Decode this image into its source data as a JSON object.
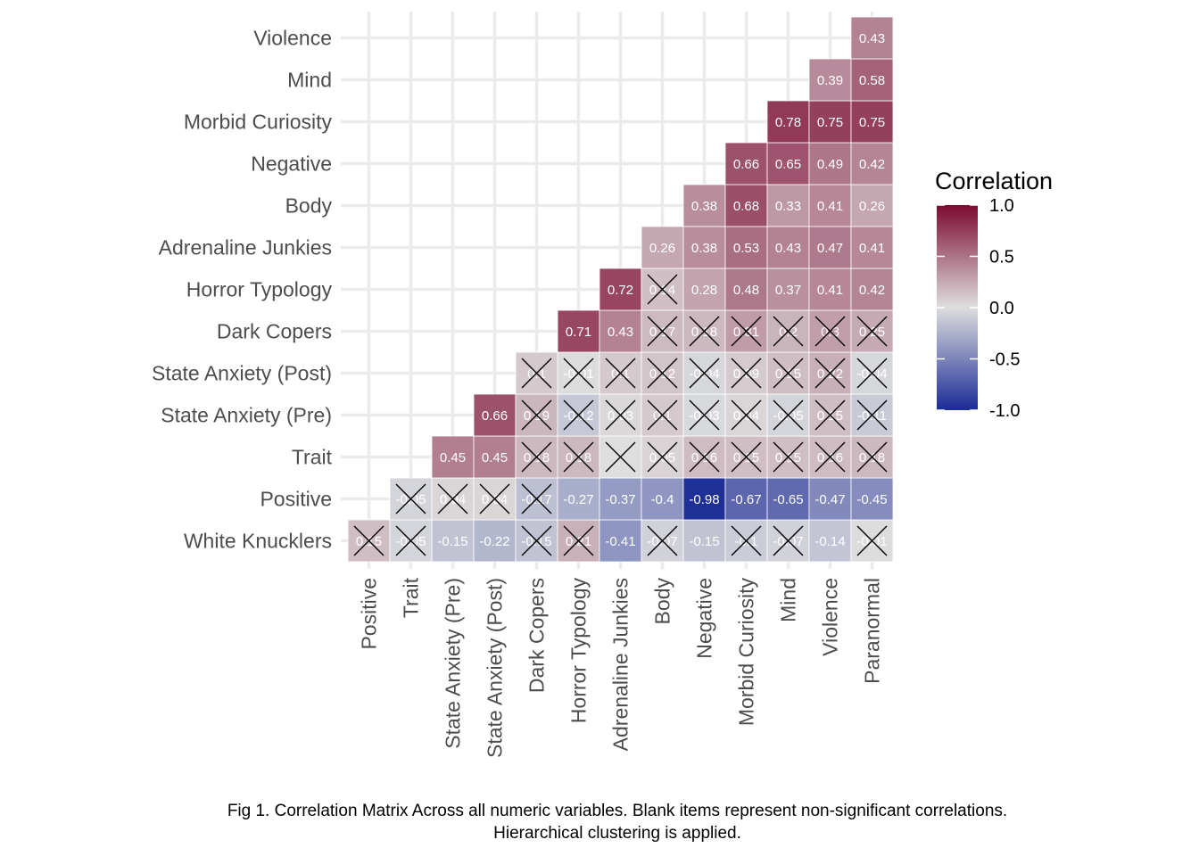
{
  "chart_data": {
    "type": "heatmap",
    "title": "",
    "caption_line1": "Fig 1. Correlation Matrix Across all numeric variables. Blank items represent non-significant correlations.",
    "caption_line2": "Hierarchical clustering is applied.",
    "x_categories": [
      "Positive",
      "Trait",
      "State Anxiety (Pre)",
      "State Anxiety (Post)",
      "Dark Copers",
      "Horror Typology",
      "Adrenaline Junkies",
      "Body",
      "Negative",
      "Morbid Curiosity",
      "Mind",
      "Violence",
      "Paranormal"
    ],
    "y_categories": [
      "White Knucklers",
      "Positive",
      "Trait",
      "State Anxiety (Pre)",
      "State Anxiety (Post)",
      "Dark Copers",
      "Horror Typology",
      "Adrenaline Junkies",
      "Body",
      "Negative",
      "Morbid Curiosity",
      "Mind",
      "Violence"
    ],
    "values": [
      [
        0.15,
        -0.05,
        -0.15,
        -0.22,
        -0.15,
        0.21,
        -0.41,
        -0.07,
        -0.15,
        -0.1,
        -0.07,
        -0.14,
        -0.01
      ],
      [
        null,
        -0.05,
        0.04,
        0.04,
        -0.17,
        -0.27,
        -0.37,
        -0.4,
        -0.98,
        -0.67,
        -0.65,
        -0.47,
        -0.45
      ],
      [
        null,
        null,
        0.45,
        0.45,
        0.18,
        0.18,
        0.0,
        0.05,
        0.16,
        0.15,
        0.15,
        0.16,
        0.18
      ],
      [
        null,
        null,
        null,
        0.66,
        0.19,
        -0.12,
        0.03,
        0.1,
        -0.03,
        0.04,
        -0.05,
        0.15,
        -0.11
      ],
      [
        null,
        null,
        null,
        null,
        0.1,
        -0.01,
        0.1,
        0.12,
        -0.04,
        0.09,
        0.15,
        0.22,
        -0.04
      ],
      [
        null,
        null,
        null,
        null,
        null,
        0.71,
        0.43,
        0.17,
        0.18,
        0.31,
        0.2,
        0.3,
        0.25
      ],
      [
        null,
        null,
        null,
        null,
        null,
        null,
        0.72,
        0.14,
        0.28,
        0.48,
        0.37,
        0.41,
        0.42
      ],
      [
        null,
        null,
        null,
        null,
        null,
        null,
        null,
        0.26,
        0.38,
        0.53,
        0.43,
        0.47,
        0.41
      ],
      [
        null,
        null,
        null,
        null,
        null,
        null,
        null,
        null,
        0.38,
        0.68,
        0.33,
        0.41,
        0.26
      ],
      [
        null,
        null,
        null,
        null,
        null,
        null,
        null,
        null,
        null,
        0.66,
        0.65,
        0.49,
        0.42
      ],
      [
        null,
        null,
        null,
        null,
        null,
        null,
        null,
        null,
        null,
        null,
        0.78,
        0.75,
        0.75
      ],
      [
        null,
        null,
        null,
        null,
        null,
        null,
        null,
        null,
        null,
        null,
        null,
        0.39,
        0.58
      ],
      [
        null,
        null,
        null,
        null,
        null,
        null,
        null,
        null,
        null,
        null,
        null,
        null,
        0.43
      ]
    ],
    "labels": [
      [
        "0.15",
        "-0.05",
        "-0.15",
        "-0.22",
        "-0.15",
        "0.21",
        "-0.41",
        "-0.07",
        "-0.15",
        "-0.1",
        "-0.07",
        "-0.14",
        "-0.01"
      ],
      [
        null,
        "-0.05",
        "0.04",
        "0.04",
        "-0.17",
        "-0.27",
        "-0.37",
        "-0.4",
        "-0.98",
        "-0.67",
        "-0.65",
        "-0.47",
        "-0.45"
      ],
      [
        null,
        null,
        "0.45",
        "0.45",
        "0.18",
        "0.18",
        "",
        "0.05",
        "0.16",
        "0.15",
        "0.15",
        "0.16",
        "0.18"
      ],
      [
        null,
        null,
        null,
        "0.66",
        "0.19",
        "-0.12",
        "0.03",
        "0.1",
        "-0.03",
        "0.04",
        "-0.05",
        "0.15",
        "-0.11"
      ],
      [
        null,
        null,
        null,
        null,
        "0.1",
        "-0.01",
        "0.1",
        "0.12",
        "-0.04",
        "0.09",
        "0.15",
        "0.22",
        "-0.04"
      ],
      [
        null,
        null,
        null,
        null,
        null,
        "0.71",
        "0.43",
        "0.17",
        "0.18",
        "0.31",
        "0.2",
        "0.3",
        "0.25"
      ],
      [
        null,
        null,
        null,
        null,
        null,
        null,
        "0.72",
        "0.14",
        "0.28",
        "0.48",
        "0.37",
        "0.41",
        "0.42"
      ],
      [
        null,
        null,
        null,
        null,
        null,
        null,
        null,
        "0.26",
        "0.38",
        "0.53",
        "0.43",
        "0.47",
        "0.41"
      ],
      [
        null,
        null,
        null,
        null,
        null,
        null,
        null,
        null,
        "0.38",
        "0.68",
        "0.33",
        "0.41",
        "0.26"
      ],
      [
        null,
        null,
        null,
        null,
        null,
        null,
        null,
        null,
        null,
        "0.66",
        "0.65",
        "0.49",
        "0.42"
      ],
      [
        null,
        null,
        null,
        null,
        null,
        null,
        null,
        null,
        null,
        null,
        "0.78",
        "0.75",
        "0.75"
      ],
      [
        null,
        null,
        null,
        null,
        null,
        null,
        null,
        null,
        null,
        null,
        null,
        "0.39",
        "0.58"
      ],
      [
        null,
        null,
        null,
        null,
        null,
        null,
        null,
        null,
        null,
        null,
        null,
        null,
        "0.43"
      ]
    ],
    "nonsignificant": [
      [
        true,
        true,
        false,
        false,
        true,
        true,
        false,
        true,
        false,
        true,
        true,
        false,
        true
      ],
      [
        false,
        true,
        true,
        true,
        true,
        false,
        false,
        false,
        false,
        false,
        false,
        false,
        false
      ],
      [
        false,
        false,
        false,
        false,
        true,
        true,
        true,
        true,
        true,
        true,
        true,
        true,
        true
      ],
      [
        false,
        false,
        false,
        false,
        true,
        true,
        true,
        true,
        true,
        true,
        true,
        true,
        true
      ],
      [
        false,
        false,
        false,
        false,
        true,
        true,
        true,
        true,
        true,
        true,
        true,
        true,
        true
      ],
      [
        false,
        false,
        false,
        false,
        false,
        false,
        false,
        true,
        true,
        true,
        true,
        true,
        true
      ],
      [
        false,
        false,
        false,
        false,
        false,
        false,
        false,
        true,
        false,
        false,
        false,
        false,
        false
      ],
      [
        false,
        false,
        false,
        false,
        false,
        false,
        false,
        false,
        false,
        false,
        false,
        false,
        false
      ],
      [
        false,
        false,
        false,
        false,
        false,
        false,
        false,
        false,
        false,
        false,
        false,
        false,
        false
      ],
      [
        false,
        false,
        false,
        false,
        false,
        false,
        false,
        false,
        false,
        false,
        false,
        false,
        false
      ],
      [
        false,
        false,
        false,
        false,
        false,
        false,
        false,
        false,
        false,
        false,
        false,
        false,
        false
      ],
      [
        false,
        false,
        false,
        false,
        false,
        false,
        false,
        false,
        false,
        false,
        false,
        false,
        false
      ],
      [
        false,
        false,
        false,
        false,
        false,
        false,
        false,
        false,
        false,
        false,
        false,
        false,
        false
      ]
    ],
    "legend": {
      "title": "Correlation",
      "ticks": [
        1.0,
        0.5,
        0.0,
        -0.5,
        -1.0
      ],
      "tick_labels": [
        "1.0",
        "0.5",
        "0.0",
        "-0.5",
        "-1.0"
      ],
      "range": [
        -1,
        1
      ],
      "position": "right"
    },
    "colors": {
      "low": "#1a2b96",
      "mid": "#dedede",
      "high": "#7b0a31"
    }
  }
}
